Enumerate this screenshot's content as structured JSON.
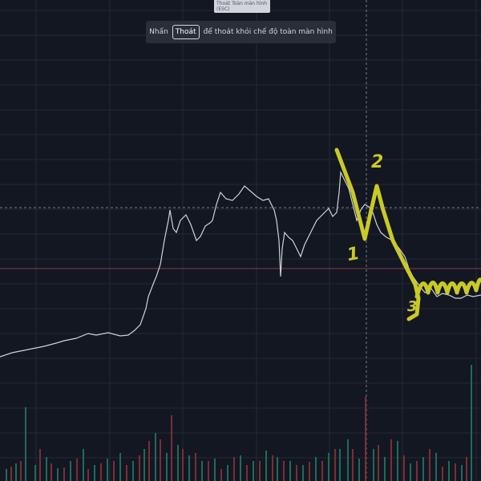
{
  "fullscreen_tooltip": {
    "title": "Thoát Toàn màn hình",
    "shortcut": "(ESC)"
  },
  "fullscreen_notice": {
    "prefix": "Nhấn",
    "button": "Thoát",
    "suffix": "để thoát khỏi chế độ toàn màn hình"
  },
  "annotations": [
    "1",
    "2",
    "3"
  ]
}
